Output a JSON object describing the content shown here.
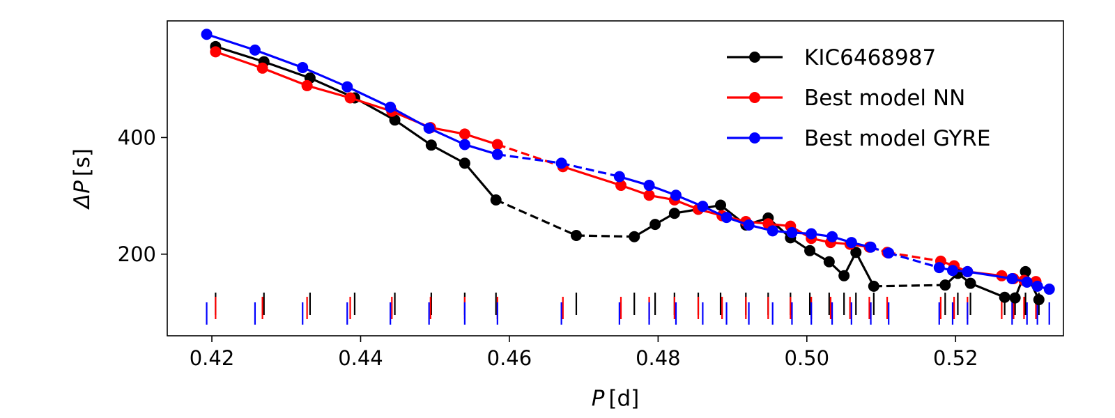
{
  "chart_data": {
    "type": "line",
    "xlabel_var": "P",
    "xlabel_unit": "[d]",
    "ylabel_var": "ΔP",
    "ylabel_unit": "[s]",
    "xlim": [
      0.414,
      0.5345
    ],
    "ylim": [
      60,
      600
    ],
    "x_ticks": [
      0.42,
      0.44,
      0.46,
      0.48,
      0.5,
      0.52
    ],
    "x_tick_labels": [
      "0.42",
      "0.44",
      "0.46",
      "0.48",
      "0.50",
      "0.52"
    ],
    "y_ticks": [
      200,
      400
    ],
    "y_tick_labels": [
      "200",
      "400"
    ],
    "legend": {
      "placement": "top-right"
    },
    "series": [
      {
        "name": "KIC6468987",
        "color": "#000000",
        "x": [
          0.4205,
          0.427,
          0.4332,
          0.4392,
          0.4446,
          0.4495,
          0.454,
          0.4582,
          0.469,
          0.4768,
          0.4796,
          0.4822,
          0.4854,
          0.4884,
          0.4918,
          0.4948,
          0.4978,
          0.5004,
          0.503,
          0.505,
          0.5066,
          0.509,
          0.5186,
          0.5203,
          0.522,
          0.5266,
          0.528,
          0.5294,
          0.5312
        ],
        "y": [
          556,
          530,
          502,
          468,
          430,
          387,
          356,
          293,
          232,
          230,
          251,
          270,
          277,
          284,
          250,
          262,
          228,
          206,
          187,
          163,
          203,
          145,
          147,
          167,
          150,
          126,
          125,
          170,
          122
        ],
        "dashed_segments": [
          [
            7,
            8
          ],
          [
            8,
            9
          ],
          [
            21,
            22
          ]
        ]
      },
      {
        "name": "Best model NN",
        "color": "#ff0000",
        "x": [
          0.4205,
          0.4268,
          0.4328,
          0.4386,
          0.4442,
          0.4494,
          0.454,
          0.4584,
          0.4672,
          0.475,
          0.4788,
          0.4822,
          0.4854,
          0.4886,
          0.4918,
          0.4948,
          0.4978,
          0.5006,
          0.5032,
          0.5058,
          0.5084,
          0.5108,
          0.518,
          0.5198,
          0.5216,
          0.5262,
          0.5278,
          0.5292,
          0.5308
        ],
        "y": [
          547,
          519,
          489,
          468,
          445,
          417,
          406,
          388,
          350,
          318,
          301,
          293,
          277,
          266,
          256,
          252,
          248,
          227,
          220,
          217,
          212,
          203,
          188,
          180,
          170,
          163,
          158,
          155,
          153
        ],
        "dashed_segments": [
          [
            7,
            8
          ],
          [
            20,
            21
          ],
          [
            21,
            22
          ]
        ]
      },
      {
        "name": "Best model GYRE",
        "color": "#0000ff",
        "x": [
          0.4193,
          0.4258,
          0.4322,
          0.4382,
          0.444,
          0.4492,
          0.454,
          0.4584,
          0.467,
          0.4748,
          0.4788,
          0.4824,
          0.486,
          0.4892,
          0.4922,
          0.4954,
          0.498,
          0.5006,
          0.5034,
          0.506,
          0.5086,
          0.511,
          0.5178,
          0.5196,
          0.5216,
          0.5276,
          0.5296,
          0.531,
          0.5326
        ],
        "y": [
          577,
          550,
          520,
          487,
          452,
          416,
          388,
          371,
          356,
          333,
          318,
          301,
          282,
          263,
          250,
          240,
          237,
          235,
          230,
          220,
          212,
          202,
          177,
          172,
          170,
          158,
          152,
          145,
          140
        ],
        "dashed_segments": [
          [
            7,
            8
          ],
          [
            8,
            9
          ],
          [
            20,
            21
          ],
          [
            21,
            22
          ]
        ]
      }
    ],
    "rug_marks": [
      {
        "series": "KIC6468987",
        "color": "#000000",
        "x": [
          0.4205,
          0.427,
          0.4332,
          0.4392,
          0.4446,
          0.4495,
          0.454,
          0.4582,
          0.469,
          0.4768,
          0.4796,
          0.4822,
          0.4854,
          0.4884,
          0.4918,
          0.4948,
          0.4978,
          0.5004,
          0.503,
          0.505,
          0.5066,
          0.509,
          0.5186,
          0.5203,
          0.522,
          0.5266,
          0.528,
          0.5294,
          0.5312
        ]
      },
      {
        "series": "Best model NN",
        "color": "#ff0000",
        "x": [
          0.4205,
          0.4268,
          0.4328,
          0.4386,
          0.4442,
          0.4494,
          0.454,
          0.4584,
          0.4672,
          0.475,
          0.4788,
          0.4822,
          0.4854,
          0.4886,
          0.4918,
          0.4948,
          0.4978,
          0.5006,
          0.5032,
          0.5058,
          0.5084,
          0.5108,
          0.518,
          0.5198,
          0.5216,
          0.5262,
          0.5278,
          0.5292,
          0.5308
        ]
      },
      {
        "series": "Best model GYRE",
        "color": "#0000ff",
        "x": [
          0.4193,
          0.4258,
          0.4322,
          0.4382,
          0.444,
          0.4492,
          0.454,
          0.4584,
          0.467,
          0.4748,
          0.4788,
          0.4824,
          0.486,
          0.4892,
          0.4922,
          0.4954,
          0.498,
          0.5006,
          0.5034,
          0.506,
          0.5086,
          0.511,
          0.5178,
          0.5196,
          0.5216,
          0.5276,
          0.5296,
          0.531,
          0.5326
        ]
      }
    ]
  }
}
